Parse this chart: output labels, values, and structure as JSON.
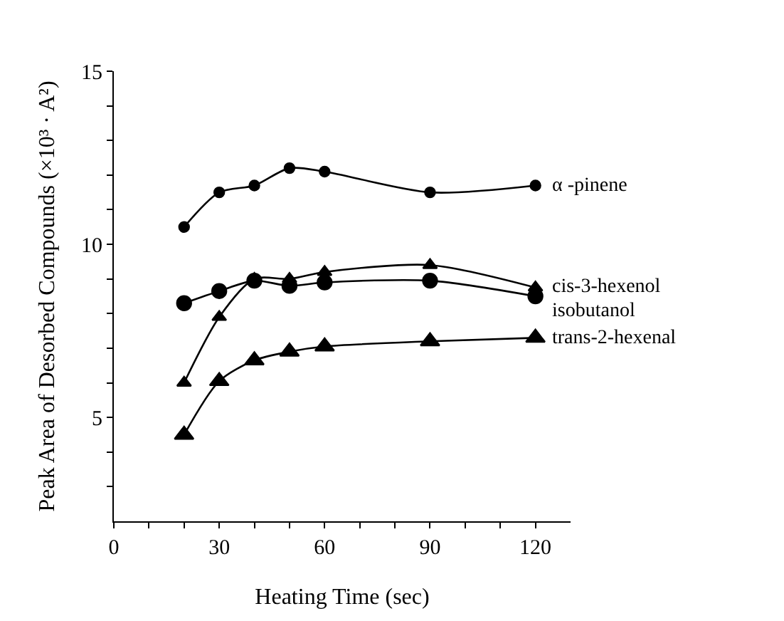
{
  "chart_data": {
    "type": "line",
    "xlabel": "Heating Time (sec)",
    "ylabel": "Peak Area of Desorbed Compounds (×10³ · A²)",
    "x": [
      20,
      30,
      40,
      50,
      60,
      90,
      120
    ],
    "series": [
      {
        "name": "α -pinene",
        "color": "#000000",
        "marker": "circle",
        "values": [
          10.5,
          11.5,
          11.7,
          12.2,
          12.1,
          11.5,
          11.7
        ]
      },
      {
        "name": "cis-3-hexenol",
        "color": "#000000",
        "marker": "triangle",
        "values": [
          6.0,
          7.9,
          9.0,
          9.0,
          9.2,
          9.4,
          8.75
        ]
      },
      {
        "name": "isobutanol",
        "color": "#000000",
        "marker": "circle",
        "values": [
          8.3,
          8.65,
          8.95,
          8.8,
          8.9,
          8.95,
          8.5
        ]
      },
      {
        "name": "trans-2-hexenal",
        "color": "#000000",
        "marker": "triangle",
        "values": [
          4.5,
          6.05,
          6.65,
          6.9,
          7.05,
          7.2,
          7.3
        ]
      }
    ],
    "xlim": [
      0,
      130
    ],
    "xticks": [
      0,
      {
        "value": 10,
        "label": null
      },
      {
        "value": 20,
        "label": null
      },
      30,
      {
        "value": 40,
        "label": null
      },
      {
        "value": 50,
        "label": null
      },
      60,
      {
        "value": 70,
        "label": null
      },
      {
        "value": 80,
        "label": null
      },
      90,
      {
        "value": 100,
        "label": null
      },
      {
        "value": 110,
        "label": null
      },
      120
    ],
    "ylim": [
      2,
      15
    ],
    "yticks": [
      {
        "value": 3,
        "label": null
      },
      {
        "value": 4,
        "label": null
      },
      5,
      {
        "value": 6,
        "label": null
      },
      {
        "value": 7,
        "label": null
      },
      {
        "value": 8,
        "label": null
      },
      {
        "value": 9,
        "label": null
      },
      10,
      {
        "value": 11,
        "label": null
      },
      {
        "value": 12,
        "label": null
      },
      {
        "value": 13,
        "label": null
      },
      {
        "value": 14,
        "label": null
      },
      15
    ],
    "grid": false,
    "legend": false,
    "line_style": "solid"
  }
}
